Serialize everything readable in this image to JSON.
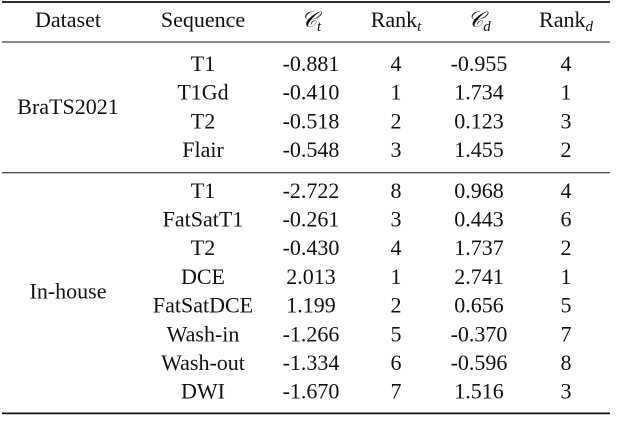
{
  "table": {
    "header": [
      {
        "text": "Dataset"
      },
      {
        "text": "Sequence"
      },
      {
        "text": "𝒞",
        "sub": "t"
      },
      {
        "text": "Rank",
        "sub": "t"
      },
      {
        "text": "𝒞",
        "sub": "d"
      },
      {
        "text": "Rank",
        "sub": "d"
      }
    ],
    "groups": [
      {
        "dataset": "BraTS2021",
        "rows": [
          [
            "T1",
            "-0.881",
            "4",
            "-0.955",
            "4"
          ],
          [
            "T1Gd",
            "-0.410",
            "1",
            "1.734",
            "1"
          ],
          [
            "T2",
            "-0.518",
            "2",
            "0.123",
            "3"
          ],
          [
            "Flair",
            "-0.548",
            "3",
            "1.455",
            "2"
          ]
        ]
      },
      {
        "dataset": "In-house",
        "rows": [
          [
            "T1",
            "-2.722",
            "8",
            "0.968",
            "4"
          ],
          [
            "FatSatT1",
            "-0.261",
            "3",
            "0.443",
            "6"
          ],
          [
            "T2",
            "-0.430",
            "4",
            "1.737",
            "2"
          ],
          [
            "DCE",
            "2.013",
            "1",
            "2.741",
            "1"
          ],
          [
            "FatSatDCE",
            "1.199",
            "2",
            "0.656",
            "5"
          ],
          [
            "Wash-in",
            "-1.266",
            "5",
            "-0.370",
            "7"
          ],
          [
            "Wash-out",
            "-1.334",
            "6",
            "-0.596",
            "8"
          ],
          [
            "DWI",
            "-1.670",
            "7",
            "1.516",
            "3"
          ]
        ]
      }
    ]
  }
}
